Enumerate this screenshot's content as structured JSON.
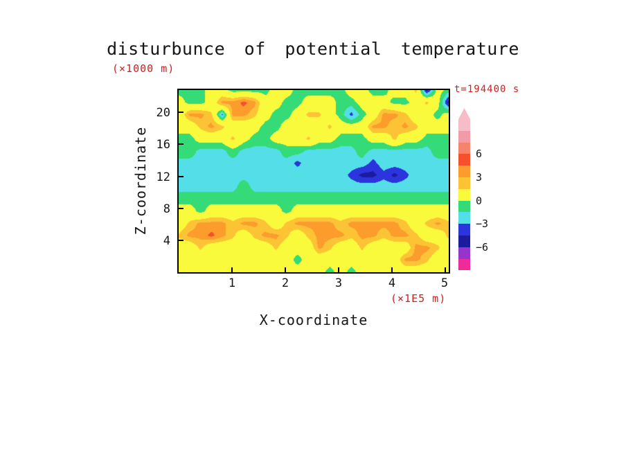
{
  "title": "disturbunce of potential temperature",
  "annotations": {
    "z_units": "(×1000 m)",
    "time": "t=194400 s",
    "x_units": "(×1E5 m)"
  },
  "axes": {
    "y_label": "Z-coordinate",
    "x_label": "X-coordinate",
    "y_ticks": [
      "20",
      "16",
      "12",
      "8",
      "4"
    ],
    "x_ticks": [
      "1",
      "2",
      "3",
      "4",
      "5"
    ]
  },
  "colors": {
    "annotation_red": "#cf1f1f",
    "text_black": "#161616",
    "frame": "#000000",
    "background": "#ffffff"
  },
  "colorbar": {
    "segments_top_to_bottom": [
      "#f6bdc9",
      "#f29aa6",
      "#f4846c",
      "#f4512c",
      "#fc9c2c",
      "#fcc435",
      "#fafa3c",
      "#35db76",
      "#54dfe8",
      "#2c34dd",
      "#1b1b9d",
      "#9833cc",
      "#ee2b99"
    ],
    "labels": [
      {
        "text": "6",
        "after_segment": 3
      },
      {
        "text": "3",
        "after_segment": 5
      },
      {
        "text": "0",
        "after_segment": 7
      },
      {
        "text": "−3",
        "after_segment": 9
      },
      {
        "text": "−6",
        "after_segment": 11
      }
    ]
  },
  "chart_data": {
    "type": "heatmap",
    "style": "filled-contour",
    "title": "disturbunce of potential temperature",
    "xlabel": "X-coordinate",
    "ylabel": "Z-coordinate",
    "x_units": "×1E5 m",
    "z_units": "×1000 m",
    "time": "t=194400 s",
    "x_range": [
      0,
      5.07
    ],
    "z_range": [
      0,
      22.8
    ],
    "x_tick_values": [
      1,
      2,
      3,
      4,
      5
    ],
    "z_tick_values": [
      4,
      8,
      12,
      16,
      20
    ],
    "levels": [
      -6,
      -4.5,
      -3,
      -1.5,
      0,
      3,
      4.5,
      6
    ],
    "level_colors_low_to_high": [
      "#9833cc",
      "#1b1b9d",
      "#2c34dd",
      "#54dfe8",
      "#35db76",
      "#fafa3c",
      "#fcc435",
      "#fc9c2c",
      "#f4512c"
    ],
    "grid": {
      "cols": 26,
      "rows": 16,
      "row_order": "top-to-bottom (z = 22.8 down to 0)",
      "values": [
        [
          -0.7,
          -0.7,
          -0.7,
          1,
          1,
          -0.7,
          -0.7,
          -0.7,
          -0.7,
          1,
          1,
          -0.7,
          -0.7,
          -0.7,
          -0.7,
          -0.7,
          1,
          1,
          -0.7,
          -0.7,
          1,
          1,
          3.5,
          -5,
          1,
          -0.7
        ],
        [
          1,
          -0.7,
          -0.7,
          1,
          5,
          5,
          6.5,
          5,
          1,
          1,
          -0.7,
          -0.7,
          1,
          1,
          1,
          -0.7,
          -0.7,
          1,
          1,
          1,
          -0.7,
          -0.7,
          1,
          3.5,
          1,
          -5
        ],
        [
          1,
          5,
          5,
          3.5,
          -3.5,
          5,
          5,
          3.5,
          1,
          -0.7,
          -0.7,
          1,
          3.5,
          3.5,
          1,
          -0.7,
          -3.5,
          -0.7,
          1,
          5,
          5,
          3.5,
          1,
          1,
          -0.7,
          1
        ],
        [
          1,
          1,
          3.5,
          5,
          3.5,
          1,
          1,
          1,
          -0.7,
          -0.7,
          1,
          1,
          1,
          1,
          3.5,
          1,
          1,
          1,
          5,
          5,
          3.5,
          5,
          3.5,
          1,
          1,
          1
        ],
        [
          -0.7,
          -0.7,
          1,
          1,
          1,
          3.5,
          1,
          -0.7,
          -0.7,
          1,
          1,
          1,
          3.5,
          1,
          1,
          -0.7,
          -0.7,
          -0.7,
          1,
          1,
          3.5,
          1,
          1,
          -0.7,
          -0.7,
          -0.7
        ],
        [
          -0.7,
          -0.7,
          -2,
          -2,
          -2,
          -0.7,
          -2,
          -2,
          -2,
          -2,
          -0.7,
          -0.7,
          -2,
          -2,
          -2,
          -2,
          -2,
          -0.7,
          -2,
          -2,
          -2,
          -2,
          -2,
          -2,
          -0.7,
          -0.7
        ],
        [
          -2,
          -2,
          -2,
          -2,
          -2,
          -2,
          -2,
          -2,
          -2,
          -2,
          -2,
          -3.5,
          -2,
          -2,
          -2,
          -2,
          -2,
          -2,
          -3.5,
          -2,
          -2,
          -2,
          -2,
          -2,
          -2,
          -2
        ],
        [
          -2,
          -2,
          -2,
          -2,
          -2,
          -2,
          -2,
          -2,
          -2,
          -2,
          -2,
          -2,
          -2,
          -2,
          -2,
          -2,
          -3.5,
          -5,
          -5,
          -3.5,
          -5,
          -3.5,
          -2,
          -2,
          -2,
          -2
        ],
        [
          -2,
          -2,
          -2,
          -2,
          -2,
          -2,
          -0.7,
          -2,
          -2,
          -2,
          -2,
          -2,
          -2,
          -2,
          -2,
          -2,
          -2,
          -2,
          -2,
          -2,
          -2,
          -2,
          -2,
          -2,
          -2,
          -2
        ],
        [
          -0.7,
          -0.7,
          -0.7,
          -0.7,
          -0.7,
          -0.7,
          -0.7,
          -0.7,
          -0.7,
          -0.7,
          -0.7,
          -0.7,
          -0.7,
          -0.7,
          -0.7,
          -0.7,
          -0.7,
          -0.7,
          -0.7,
          -0.7,
          -0.7,
          -0.7,
          -0.7,
          -0.7,
          -0.7,
          -0.7
        ],
        [
          1,
          1,
          -0.7,
          1,
          1,
          1,
          1,
          1,
          1,
          1,
          -0.7,
          1,
          1,
          1,
          1,
          1,
          1,
          1,
          1,
          1,
          1,
          1,
          1,
          1,
          1,
          1
        ],
        [
          1,
          3.5,
          5,
          5,
          5,
          3.5,
          5,
          5,
          3.5,
          1,
          3.5,
          5,
          5,
          5,
          5,
          3.5,
          5,
          5,
          5,
          5,
          5,
          3.5,
          1,
          3.5,
          5,
          3.5
        ],
        [
          3.5,
          5,
          5,
          6.5,
          5,
          3.5,
          1,
          3.5,
          5,
          5,
          3.5,
          1,
          3.5,
          5,
          5,
          5,
          3.5,
          5,
          5,
          3.5,
          5,
          5,
          3.5,
          1,
          1,
          3.5
        ],
        [
          1,
          1,
          3.5,
          1,
          1,
          1,
          1,
          1,
          1,
          3.5,
          1,
          1,
          1,
          5,
          3.5,
          1,
          1,
          3.5,
          1,
          1,
          1,
          1,
          5,
          5,
          3.5,
          1
        ],
        [
          1,
          1,
          1,
          1,
          1,
          1,
          1,
          1,
          1,
          1,
          1,
          -0.7,
          1,
          1,
          1,
          1,
          1,
          1,
          1,
          1,
          1,
          5,
          5,
          3.5,
          1,
          1
        ],
        [
          1,
          1,
          1,
          1,
          1,
          1,
          1,
          1,
          1,
          1,
          1,
          1,
          1,
          1,
          -0.7,
          1,
          -0.7,
          1,
          1,
          1,
          1,
          1,
          1,
          1,
          1,
          1
        ]
      ]
    }
  }
}
